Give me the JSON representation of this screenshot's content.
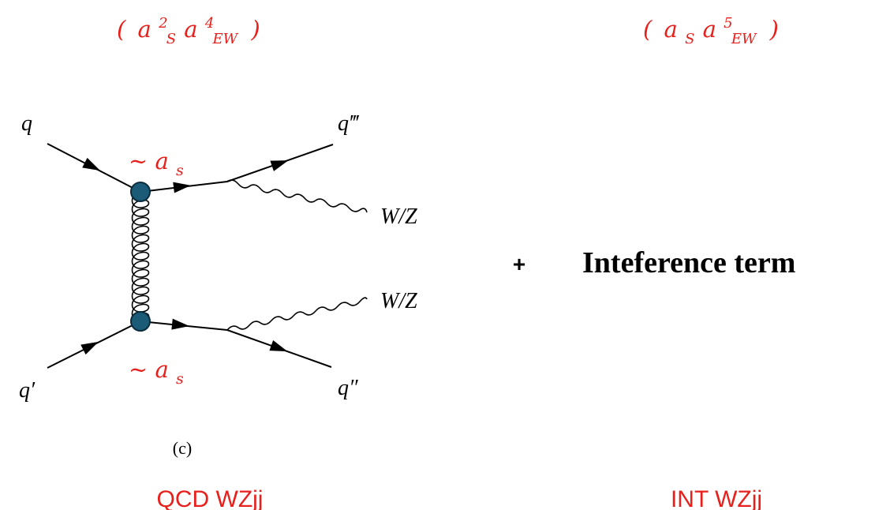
{
  "header": {
    "left_coupling": {
      "open": "(",
      "a": "a",
      "s_sub": "S",
      "s_sup": "2",
      "a2": "a",
      "ew_sub": "EW",
      "ew_sup": "4",
      "close": ")"
    },
    "right_coupling": {
      "open": "(",
      "a": "a",
      "s_sub": "S",
      "a2": "a",
      "ew_sub": "EW",
      "ew_sup": "5",
      "close": ")"
    }
  },
  "diagram": {
    "particles": {
      "q_in_top": "q",
      "q_in_bottom": "q′",
      "q_out_top": "q‴",
      "q_out_bottom": "q″",
      "boson_top": "W/Z",
      "boson_bottom": "W/Z"
    },
    "vertex_labels": {
      "top": {
        "prefix": "~",
        "a": "a",
        "sub": "s"
      },
      "bottom": {
        "prefix": "~",
        "a": "a",
        "sub": "s"
      }
    },
    "caption": "(c)"
  },
  "plus_sign": "+",
  "interference_label": "Inteference term",
  "footer": {
    "left_label": "QCD WZjj",
    "right_label": "INT WZjj"
  },
  "colors": {
    "accent_red": "#e8201c",
    "vertex_fill": "#1c5b78"
  }
}
